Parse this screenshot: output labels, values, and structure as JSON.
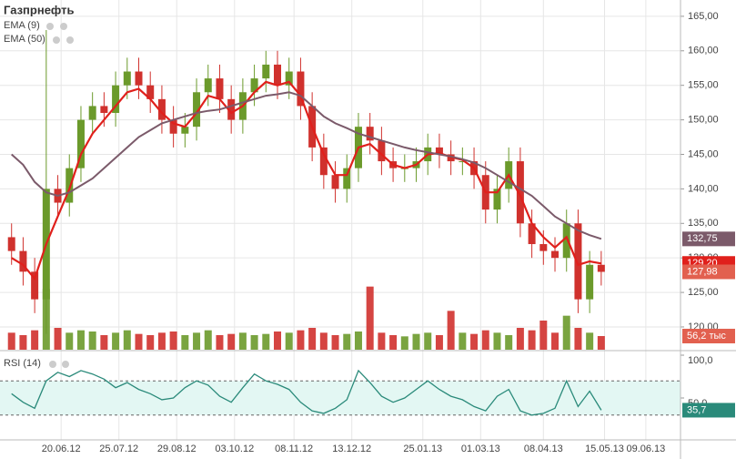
{
  "chart_data": [
    {
      "type": "candlestick",
      "title": "Газпрнефть",
      "x": [
        "21.05.12",
        "28.05.12",
        "04.06.12",
        "11.06.12",
        "18.06.12",
        "25.06.12",
        "02.07.12",
        "09.07.12",
        "16.07.12",
        "23.07.12",
        "30.07.12",
        "06.08.12",
        "13.08.12",
        "20.08.12",
        "27.08.12",
        "03.09.12",
        "10.09.12",
        "17.09.12",
        "24.09.12",
        "01.10.12",
        "08.10.12",
        "15.10.12",
        "22.10.12",
        "29.10.12",
        "05.11.12",
        "12.11.12",
        "19.11.12",
        "26.11.12",
        "03.12.12",
        "10.12.12",
        "17.12.12",
        "24.12.12",
        "31.12.12",
        "07.01.13",
        "14.01.13",
        "21.01.13",
        "28.01.13",
        "04.02.13",
        "11.02.13",
        "18.02.13",
        "25.02.13",
        "04.03.13",
        "11.03.13",
        "18.03.13",
        "25.03.13",
        "01.04.13",
        "08.04.13",
        "15.04.13",
        "22.04.13",
        "29.04.13",
        "06.05.13",
        "13.05.13"
      ],
      "open": [
        133,
        131,
        128,
        124,
        140,
        138,
        143,
        150,
        152,
        151,
        155,
        157,
        155,
        153,
        150,
        148,
        149,
        154,
        156,
        153,
        150,
        154,
        156,
        158,
        155,
        157,
        152,
        146,
        142,
        140,
        143,
        149,
        147,
        144,
        143,
        143,
        144,
        146,
        145,
        144,
        144,
        142,
        137,
        140,
        144,
        135,
        132,
        131,
        130,
        135,
        124,
        129
      ],
      "high": [
        135,
        133,
        130,
        163,
        142,
        145,
        152,
        154,
        154,
        157,
        159,
        159,
        157,
        155,
        152,
        151,
        156,
        158,
        158,
        155,
        156,
        158,
        160,
        160,
        159,
        159,
        154,
        148,
        144,
        145,
        151,
        151,
        149,
        146,
        145,
        146,
        148,
        148,
        147,
        146,
        146,
        144,
        142,
        146,
        146,
        137,
        134,
        133,
        137,
        137,
        131,
        131
      ],
      "low": [
        129,
        126,
        122,
        119,
        136,
        136,
        141,
        148,
        149,
        149,
        153,
        153,
        151,
        148,
        146,
        146,
        147,
        152,
        151,
        148,
        148,
        152,
        154,
        153,
        153,
        150,
        144,
        140,
        138,
        138,
        141,
        145,
        142,
        141,
        141,
        141,
        142,
        143,
        142,
        142,
        140,
        135,
        135,
        138,
        133,
        130,
        129,
        128,
        128,
        122,
        122,
        126
      ],
      "close": [
        131,
        128,
        124,
        140,
        138,
        143,
        150,
        152,
        151,
        155,
        157,
        155,
        153,
        150,
        148,
        149,
        154,
        156,
        153,
        150,
        154,
        156,
        158,
        155,
        157,
        152,
        146,
        142,
        140,
        143,
        149,
        147,
        144,
        143,
        143,
        144,
        146,
        145,
        144,
        144,
        142,
        137,
        140,
        144,
        135,
        132,
        131,
        130,
        135,
        124,
        129,
        127.98
      ],
      "last_label": "127,98",
      "up_color": "#6b9a2b",
      "down_color": "#d0312d",
      "marker_color": "#e2604f",
      "series": [
        {
          "name": "EMA (9)",
          "color": "#e0201c",
          "last_label": "129,20",
          "values": [
            130,
            129,
            127,
            132,
            136,
            140,
            145,
            148,
            150,
            152,
            154,
            154.5,
            153,
            151,
            149.5,
            149,
            151,
            153.5,
            153,
            151,
            152,
            154,
            155.5,
            155,
            155.5,
            153.5,
            149,
            145,
            142,
            142,
            146,
            146.5,
            145,
            143.5,
            143,
            143.5,
            145,
            145.2,
            144.6,
            144.2,
            143,
            139.5,
            139.5,
            142,
            139,
            135,
            133,
            131.5,
            133,
            129,
            129.5,
            129.2
          ]
        },
        {
          "name": "EMA (50)",
          "color": "#7b5a6a",
          "last_label": "132,75",
          "values": [
            145,
            143.5,
            141,
            139.5,
            139,
            139.5,
            140.5,
            141.5,
            143,
            144.5,
            146,
            147.5,
            148.5,
            149.5,
            150,
            150.5,
            151,
            151.3,
            151.5,
            152,
            152.5,
            153,
            153.5,
            153.7,
            154,
            153.5,
            152,
            150.5,
            149.5,
            148.8,
            148,
            147.5,
            147,
            146.5,
            146,
            145.6,
            145.3,
            145,
            144.7,
            144.3,
            143.8,
            143,
            142,
            141,
            140,
            139,
            137.5,
            136,
            135,
            134,
            133.3,
            132.75
          ]
        }
      ],
      "xlim": [
        "14.05.12",
        "30.06.13"
      ],
      "xticks": [
        "20.06.12",
        "25.07.12",
        "29.08.12",
        "03.10.12",
        "08.11.12",
        "13.12.12",
        "25.01.13",
        "01.03.13",
        "08.04.13",
        "15.05.13",
        "09.06.13"
      ],
      "ylim": [
        116.7,
        167.36
      ],
      "yticks": [
        {
          "value": 120,
          "label": "120,00"
        },
        {
          "value": 125,
          "label": "125,00"
        },
        {
          "value": 130,
          "label": "130,00"
        },
        {
          "value": 135,
          "label": "135,00"
        },
        {
          "value": 140,
          "label": "140,00"
        },
        {
          "value": 145,
          "label": "145,00"
        },
        {
          "value": 150,
          "label": "150,00"
        },
        {
          "value": 155,
          "label": "155,00"
        },
        {
          "value": 160,
          "label": "160,00"
        },
        {
          "value": 165,
          "label": "165,00"
        }
      ],
      "grid": true
    },
    {
      "type": "bar",
      "values": [
        70,
        60,
        80,
        250,
        90,
        70,
        80,
        75,
        60,
        70,
        80,
        65,
        60,
        70,
        75,
        60,
        70,
        80,
        60,
        65,
        70,
        60,
        65,
        75,
        70,
        80,
        90,
        70,
        60,
        65,
        75,
        260,
        70,
        60,
        55,
        65,
        70,
        60,
        160,
        70,
        65,
        80,
        70,
        60,
        90,
        80,
        120,
        70,
        140,
        90,
        70,
        56.2
      ],
      "last_label": "56,2 тыс",
      "marker_color": "#e2604f",
      "ylim": [
        0,
        300
      ]
    },
    {
      "type": "line",
      "title": "RSI (14)",
      "color": "#2a8a7a",
      "band_color": "#e3f7f3",
      "marker_color": "#2a8a7a",
      "values": [
        55,
        45,
        38,
        70,
        80,
        75,
        82,
        78,
        72,
        62,
        68,
        60,
        55,
        48,
        50,
        62,
        70,
        65,
        52,
        45,
        62,
        78,
        70,
        66,
        60,
        45,
        35,
        32,
        38,
        48,
        82,
        68,
        52,
        45,
        50,
        60,
        70,
        60,
        52,
        48,
        40,
        35,
        52,
        60,
        35,
        30,
        32,
        38,
        70,
        40,
        58,
        35.7
      ],
      "last_label": "35,7",
      "ylim": [
        0,
        100
      ],
      "yticks": [
        {
          "value": 100,
          "label": "100,0"
        },
        {
          "value": 50,
          "label": "50,0"
        }
      ],
      "levels": [
        70,
        30
      ]
    }
  ]
}
